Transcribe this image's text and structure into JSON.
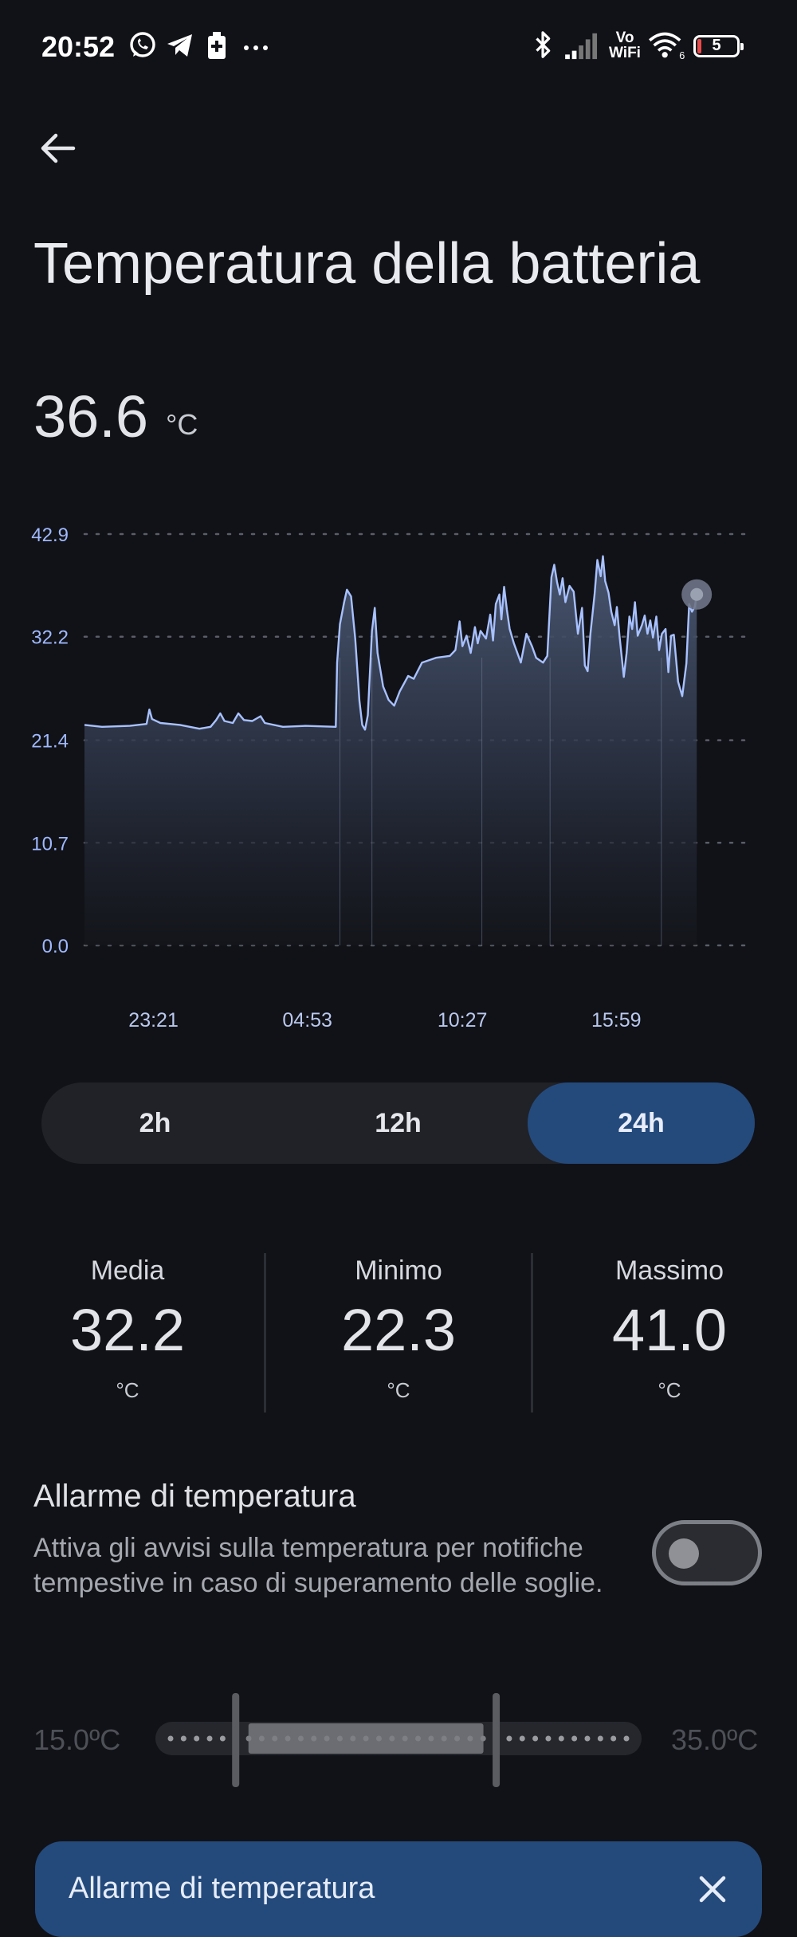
{
  "status_bar": {
    "time": "20:52",
    "left_icons": [
      "whatsapp-icon",
      "telegram-icon",
      "battery-saver-icon",
      "more-dots-icon"
    ],
    "right_icons": [
      "bluetooth-icon",
      "signal-icon",
      "vowifi-icon",
      "wifi-icon",
      "battery-icon"
    ],
    "vowifi_text_top": "Vo",
    "vowifi_text_bottom": "WiFi",
    "wifi_badge": "6",
    "battery_level": "5"
  },
  "header": {
    "back_icon": "arrow-left-icon",
    "title": "Temperatura della batteria"
  },
  "current": {
    "value": "36.6",
    "unit": "°C"
  },
  "chart_data": {
    "type": "area",
    "y_ticks": [
      "42.9",
      "32.2",
      "21.4",
      "10.7",
      "0.0"
    ],
    "ylim": [
      0,
      42.9
    ],
    "x_tick_labels": [
      "23:21",
      "04:53",
      "10:27",
      "15:59"
    ],
    "x_range_hours": [
      20.87,
      44.87
    ],
    "x_tick_hours": [
      23.35,
      28.88,
      34.45,
      39.98
    ],
    "grid": "horizontal-dotted",
    "line_color": "#a8c1ff",
    "series": [
      {
        "points": [
          [
            20.87,
            23.0
          ],
          [
            21.5,
            22.8
          ],
          [
            22.5,
            22.9
          ],
          [
            23.1,
            23.1
          ],
          [
            23.2,
            24.6
          ],
          [
            23.3,
            23.6
          ],
          [
            23.6,
            23.2
          ],
          [
            24.3,
            23.0
          ],
          [
            25.0,
            22.6
          ],
          [
            25.4,
            22.8
          ],
          [
            25.6,
            23.5
          ],
          [
            25.75,
            24.2
          ],
          [
            25.9,
            23.4
          ],
          [
            26.2,
            23.2
          ],
          [
            26.4,
            24.2
          ],
          [
            26.6,
            23.5
          ],
          [
            26.9,
            23.4
          ],
          [
            27.2,
            23.9
          ],
          [
            27.35,
            23.2
          ],
          [
            28.0,
            22.8
          ],
          [
            28.8,
            22.9
          ],
          [
            29.9,
            22.8
          ],
          [
            29.95,
            29.5
          ],
          [
            30.05,
            33.5
          ],
          [
            30.2,
            35.8
          ],
          [
            30.3,
            37.1
          ],
          [
            30.45,
            36.4
          ],
          [
            30.6,
            32.0
          ],
          [
            30.75,
            25.5
          ],
          [
            30.85,
            23.0
          ],
          [
            30.95,
            22.5
          ],
          [
            31.05,
            24.0
          ],
          [
            31.2,
            32.8
          ],
          [
            31.3,
            35.2
          ],
          [
            31.4,
            30.5
          ],
          [
            31.6,
            27.0
          ],
          [
            31.8,
            25.6
          ],
          [
            32.0,
            25.0
          ],
          [
            32.2,
            26.5
          ],
          [
            32.5,
            28.1
          ],
          [
            32.7,
            27.8
          ],
          [
            33.0,
            29.5
          ],
          [
            33.5,
            30.0
          ],
          [
            34.0,
            30.2
          ],
          [
            34.2,
            30.8
          ],
          [
            34.35,
            33.8
          ],
          [
            34.45,
            31.2
          ],
          [
            34.6,
            32.3
          ],
          [
            34.75,
            30.5
          ],
          [
            34.9,
            33.2
          ],
          [
            35.0,
            31.5
          ],
          [
            35.1,
            32.8
          ],
          [
            35.3,
            32.0
          ],
          [
            35.45,
            34.5
          ],
          [
            35.55,
            31.8
          ],
          [
            35.65,
            35.6
          ],
          [
            35.78,
            36.6
          ],
          [
            35.85,
            34.0
          ],
          [
            35.95,
            37.4
          ],
          [
            36.05,
            35.0
          ],
          [
            36.15,
            33.0
          ],
          [
            36.3,
            31.5
          ],
          [
            36.55,
            29.5
          ],
          [
            36.75,
            32.5
          ],
          [
            36.95,
            31.2
          ],
          [
            37.1,
            30.0
          ],
          [
            37.35,
            29.5
          ],
          [
            37.5,
            30.2
          ],
          [
            37.65,
            38.4
          ],
          [
            37.75,
            39.7
          ],
          [
            37.85,
            37.9
          ],
          [
            37.95,
            36.6
          ],
          [
            38.05,
            38.3
          ],
          [
            38.15,
            35.8
          ],
          [
            38.3,
            37.5
          ],
          [
            38.45,
            36.9
          ],
          [
            38.6,
            32.5
          ],
          [
            38.75,
            35.2
          ],
          [
            38.85,
            29.2
          ],
          [
            38.95,
            28.6
          ],
          [
            39.05,
            32.5
          ],
          [
            39.2,
            36.6
          ],
          [
            39.3,
            40.2
          ],
          [
            39.42,
            38.5
          ],
          [
            39.5,
            40.6
          ],
          [
            39.58,
            38.0
          ],
          [
            39.7,
            36.8
          ],
          [
            39.8,
            34.8
          ],
          [
            39.92,
            33.4
          ],
          [
            40.0,
            35.3
          ],
          [
            40.1,
            32.2
          ],
          [
            40.25,
            28.0
          ],
          [
            40.35,
            30.5
          ],
          [
            40.45,
            34.3
          ],
          [
            40.55,
            33.0
          ],
          [
            40.65,
            35.8
          ],
          [
            40.75,
            32.3
          ],
          [
            40.9,
            33.4
          ],
          [
            41.0,
            34.4
          ],
          [
            41.1,
            32.5
          ],
          [
            41.2,
            33.9
          ],
          [
            41.3,
            32.1
          ],
          [
            41.42,
            34.3
          ],
          [
            41.52,
            30.8
          ],
          [
            41.62,
            32.5
          ],
          [
            41.75,
            33.0
          ],
          [
            41.85,
            28.5
          ],
          [
            41.95,
            32.3
          ],
          [
            42.05,
            32.4
          ],
          [
            42.2,
            27.5
          ],
          [
            42.35,
            26.0
          ],
          [
            42.5,
            29.4
          ],
          [
            42.6,
            35.6
          ],
          [
            42.7,
            34.8
          ],
          [
            42.8,
            35.3
          ],
          [
            42.87,
            36.6
          ]
        ]
      }
    ],
    "vertical_markers_hours": [
      30.05,
      31.2,
      35.15,
      37.6,
      41.6
    ]
  },
  "range_selector": {
    "options": [
      "2h",
      "12h",
      "24h"
    ],
    "selected": "24h"
  },
  "stats": [
    {
      "label": "Media",
      "value": "32.2",
      "unit": "°C"
    },
    {
      "label": "Minimo",
      "value": "22.3",
      "unit": "°C"
    },
    {
      "label": "Massimo",
      "value": "41.0",
      "unit": "°C"
    }
  ],
  "alarm": {
    "title": "Allarme di temperatura",
    "description": "Attiva gli avvisi sulla temperatura per notifiche tempestive in caso di superamento delle soglie.",
    "enabled": false,
    "min_label": "15.0ºC",
    "max_label": "35.0ºC",
    "range_min": 15,
    "range_max": 35,
    "scale_min": 10,
    "scale_max": 45
  },
  "banner": {
    "title": "Allarme di temperatura",
    "close_icon": "close-icon"
  },
  "colors": {
    "background": "#111217",
    "accent": "#244a7c",
    "chart_line": "#a8c1ff"
  }
}
